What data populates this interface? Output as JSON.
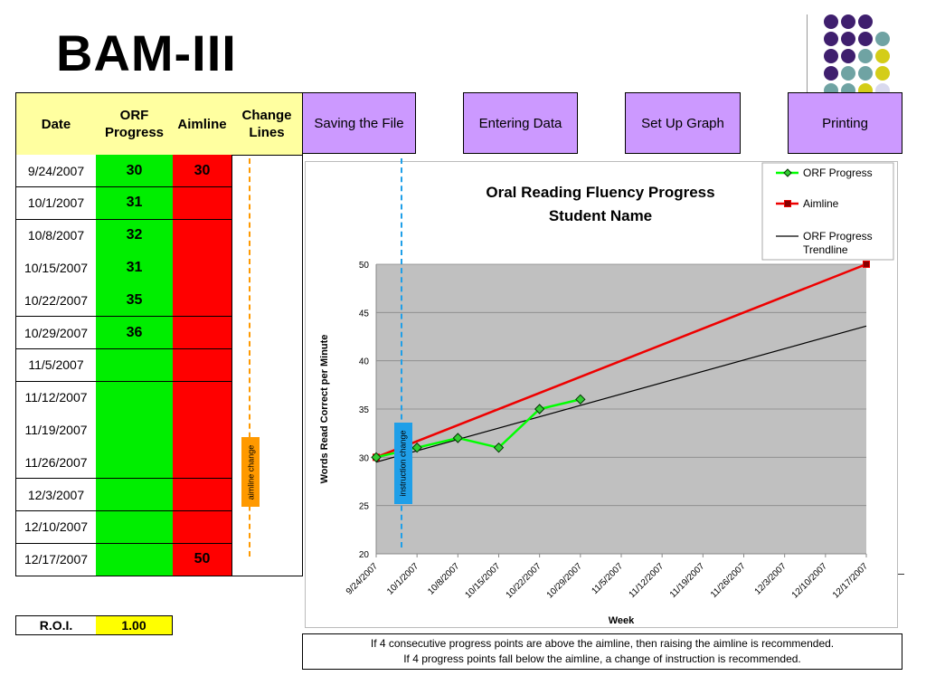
{
  "slide": {
    "title": "BAM-III"
  },
  "table": {
    "headers": {
      "date": "Date",
      "orf": "ORF Progress",
      "aimline": "Aimline",
      "change": "Change Lines"
    },
    "rows": [
      {
        "date": "9/24/2007",
        "orf": "30",
        "aim": "30"
      },
      {
        "date": "10/1/2007",
        "orf": "31",
        "aim": ""
      },
      {
        "date": "10/8/2007",
        "orf": "32",
        "aim": ""
      },
      {
        "date": "10/15/2007",
        "orf": "31",
        "aim": ""
      },
      {
        "date": "10/22/2007",
        "orf": "35",
        "aim": ""
      },
      {
        "date": "10/29/2007",
        "orf": "36",
        "aim": ""
      },
      {
        "date": "11/5/2007",
        "orf": "",
        "aim": ""
      },
      {
        "date": "11/12/2007",
        "orf": "",
        "aim": ""
      },
      {
        "date": "11/19/2007",
        "orf": "",
        "aim": ""
      },
      {
        "date": "11/26/2007",
        "orf": "",
        "aim": ""
      },
      {
        "date": "12/3/2007",
        "orf": "",
        "aim": ""
      },
      {
        "date": "12/10/2007",
        "orf": "",
        "aim": ""
      },
      {
        "date": "12/17/2007",
        "orf": "",
        "aim": "50"
      }
    ],
    "aimline_change_label": "aimline change"
  },
  "nav": {
    "saving": "Saving the File",
    "entering": "Entering Data",
    "setup": "Set Up Graph",
    "printing": "Printing"
  },
  "roi": {
    "label": "R.O.I.",
    "value": "1.00"
  },
  "note": {
    "line1": "If 4 consecutive progress points are above the aimline, then raising the aimline is recommended.",
    "line2": "If 4 progress points fall below the aimline, a change of instruction is recommended."
  },
  "colors": {
    "orf_cell": "#00ee00",
    "aim_cell": "#ff0000",
    "header": "#ffffa0",
    "nav": "#cc99ff",
    "plot_bg": "#c0c0c0",
    "orf_line": "#00ff00",
    "aim_line": "#ee0000",
    "instruction_change": "#1f9fe8",
    "aimline_change": "#ff9900"
  },
  "chart_data": {
    "type": "line",
    "title": "Oral Reading Fluency Progress",
    "subtitle": "Student Name",
    "xlabel": "Week",
    "ylabel": "Words Read Correct per Minute",
    "ylim": [
      20,
      50
    ],
    "yticks": [
      20,
      25,
      30,
      35,
      40,
      45,
      50
    ],
    "categories": [
      "9/24/2007",
      "10/1/2007",
      "10/8/2007",
      "10/15/2007",
      "10/22/2007",
      "10/29/2007",
      "11/5/2007",
      "11/12/2007",
      "11/19/2007",
      "11/26/2007",
      "12/3/2007",
      "12/10/2007",
      "12/17/2007"
    ],
    "grid": true,
    "legend_position": "top-right",
    "series": [
      {
        "name": "ORF Progress",
        "values": [
          30,
          31,
          32,
          31,
          35,
          36,
          null,
          null,
          null,
          null,
          null,
          null,
          null
        ],
        "marker": "diamond"
      },
      {
        "name": "Aimline",
        "values": [
          30,
          null,
          null,
          null,
          null,
          null,
          null,
          null,
          null,
          null,
          null,
          null,
          50
        ],
        "marker": "square"
      },
      {
        "name": "ORF Progress Trendline",
        "values": [
          29.5,
          null,
          null,
          null,
          null,
          null,
          null,
          null,
          null,
          null,
          null,
          null,
          43.6
        ]
      }
    ],
    "annotations": [
      {
        "text": "instruction change",
        "x": "10/1/2007"
      }
    ]
  }
}
